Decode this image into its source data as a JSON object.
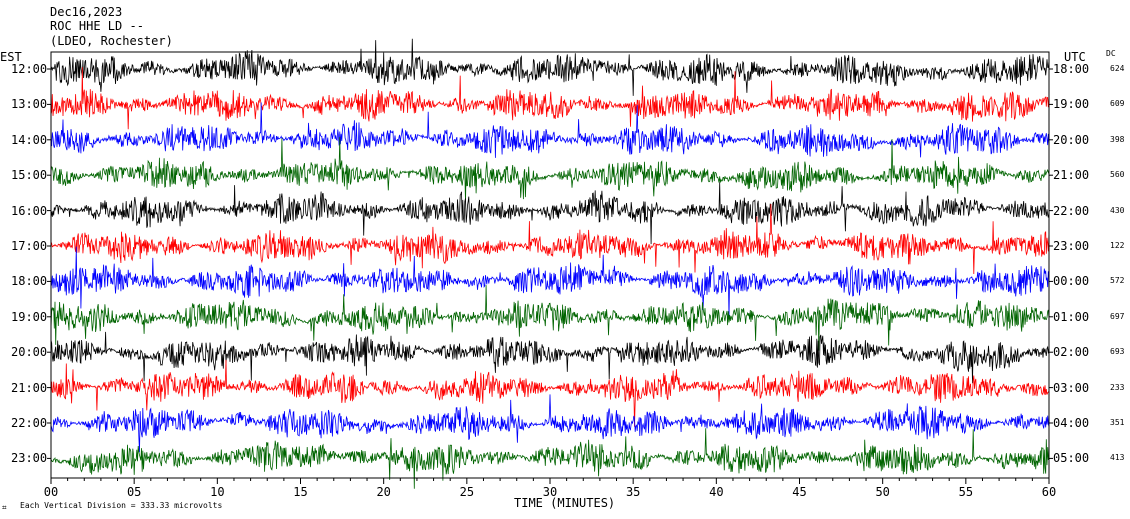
{
  "header": {
    "date": "Dec16,2023",
    "station": "ROC HHE LD --",
    "network": "(LDEO, Rochester)"
  },
  "left_axis_label": "EST",
  "right_axis_label": "UTC",
  "dc_label": "DC",
  "footer": {
    "scale_note": "Each Vertical Division = 333.33 microvolts"
  },
  "chart_data": {
    "type": "line",
    "xlabel": "TIME (MINUTES)",
    "xlim": [
      0,
      60
    ],
    "x_ticks": [
      "00",
      "05",
      "10",
      "15",
      "20",
      "25",
      "30",
      "35",
      "40",
      "45",
      "50",
      "55",
      "60"
    ],
    "trace_colors": [
      "#000000",
      "#ff0000",
      "#0000ff",
      "#006400"
    ],
    "rows": [
      {
        "est": "12:00",
        "utc": "18:00",
        "dc": "624"
      },
      {
        "est": "13:00",
        "utc": "19:00",
        "dc": "609"
      },
      {
        "est": "14:00",
        "utc": "20:00",
        "dc": "398"
      },
      {
        "est": "15:00",
        "utc": "21:00",
        "dc": "560"
      },
      {
        "est": "16:00",
        "utc": "22:00",
        "dc": "430"
      },
      {
        "est": "17:00",
        "utc": "23:00",
        "dc": "122"
      },
      {
        "est": "18:00",
        "utc": "00:00",
        "dc": "572"
      },
      {
        "est": "19:00",
        "utc": "01:00",
        "dc": "697"
      },
      {
        "est": "20:00",
        "utc": "02:00",
        "dc": "693"
      },
      {
        "est": "21:00",
        "utc": "03:00",
        "dc": "233"
      },
      {
        "est": "22:00",
        "utc": "04:00",
        "dc": "351"
      },
      {
        "est": "23:00",
        "utc": "05:00",
        "dc": "413"
      }
    ]
  }
}
